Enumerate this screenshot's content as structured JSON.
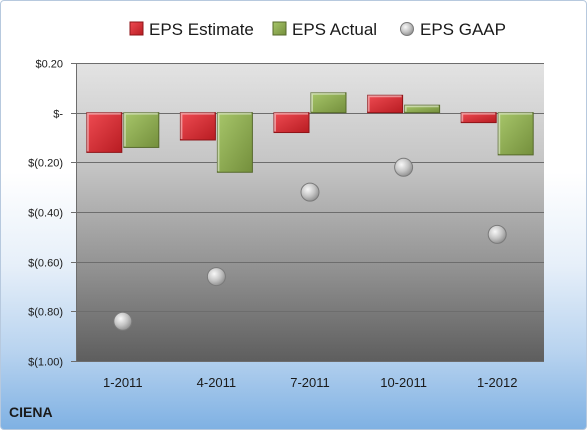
{
  "chart_data": {
    "type": "bar",
    "categories": [
      "1-2011",
      "4-2011",
      "7-2011",
      "10-2011",
      "1-2012"
    ],
    "series": [
      {
        "name": "EPS Estimate",
        "kind": "bar",
        "color": "#cc2229",
        "values": [
          -0.16,
          -0.11,
          -0.08,
          0.07,
          -0.04
        ]
      },
      {
        "name": "EPS Actual",
        "kind": "bar",
        "color": "#8aab4b",
        "values": [
          -0.14,
          -0.24,
          0.08,
          0.03,
          -0.17
        ]
      },
      {
        "name": "EPS GAAP",
        "kind": "marker",
        "color": "#a6a6a6",
        "values": [
          -0.84,
          -0.66,
          -0.32,
          -0.22,
          -0.49
        ]
      }
    ],
    "ylim": [
      -1.0,
      0.2
    ],
    "yticks": [
      {
        "value": 0.2,
        "label": "$0.20"
      },
      {
        "value": 0.0,
        "label": "$-"
      },
      {
        "value": -0.2,
        "label": "$(0.20)"
      },
      {
        "value": -0.4,
        "label": "$(0.40)"
      },
      {
        "value": -0.6,
        "label": "$(0.60)"
      },
      {
        "value": -0.8,
        "label": "$(0.80)"
      },
      {
        "value": -1.0,
        "label": "$(1.00)"
      }
    ],
    "grid": true,
    "legend_position": "top"
  },
  "brand": "CIENA"
}
